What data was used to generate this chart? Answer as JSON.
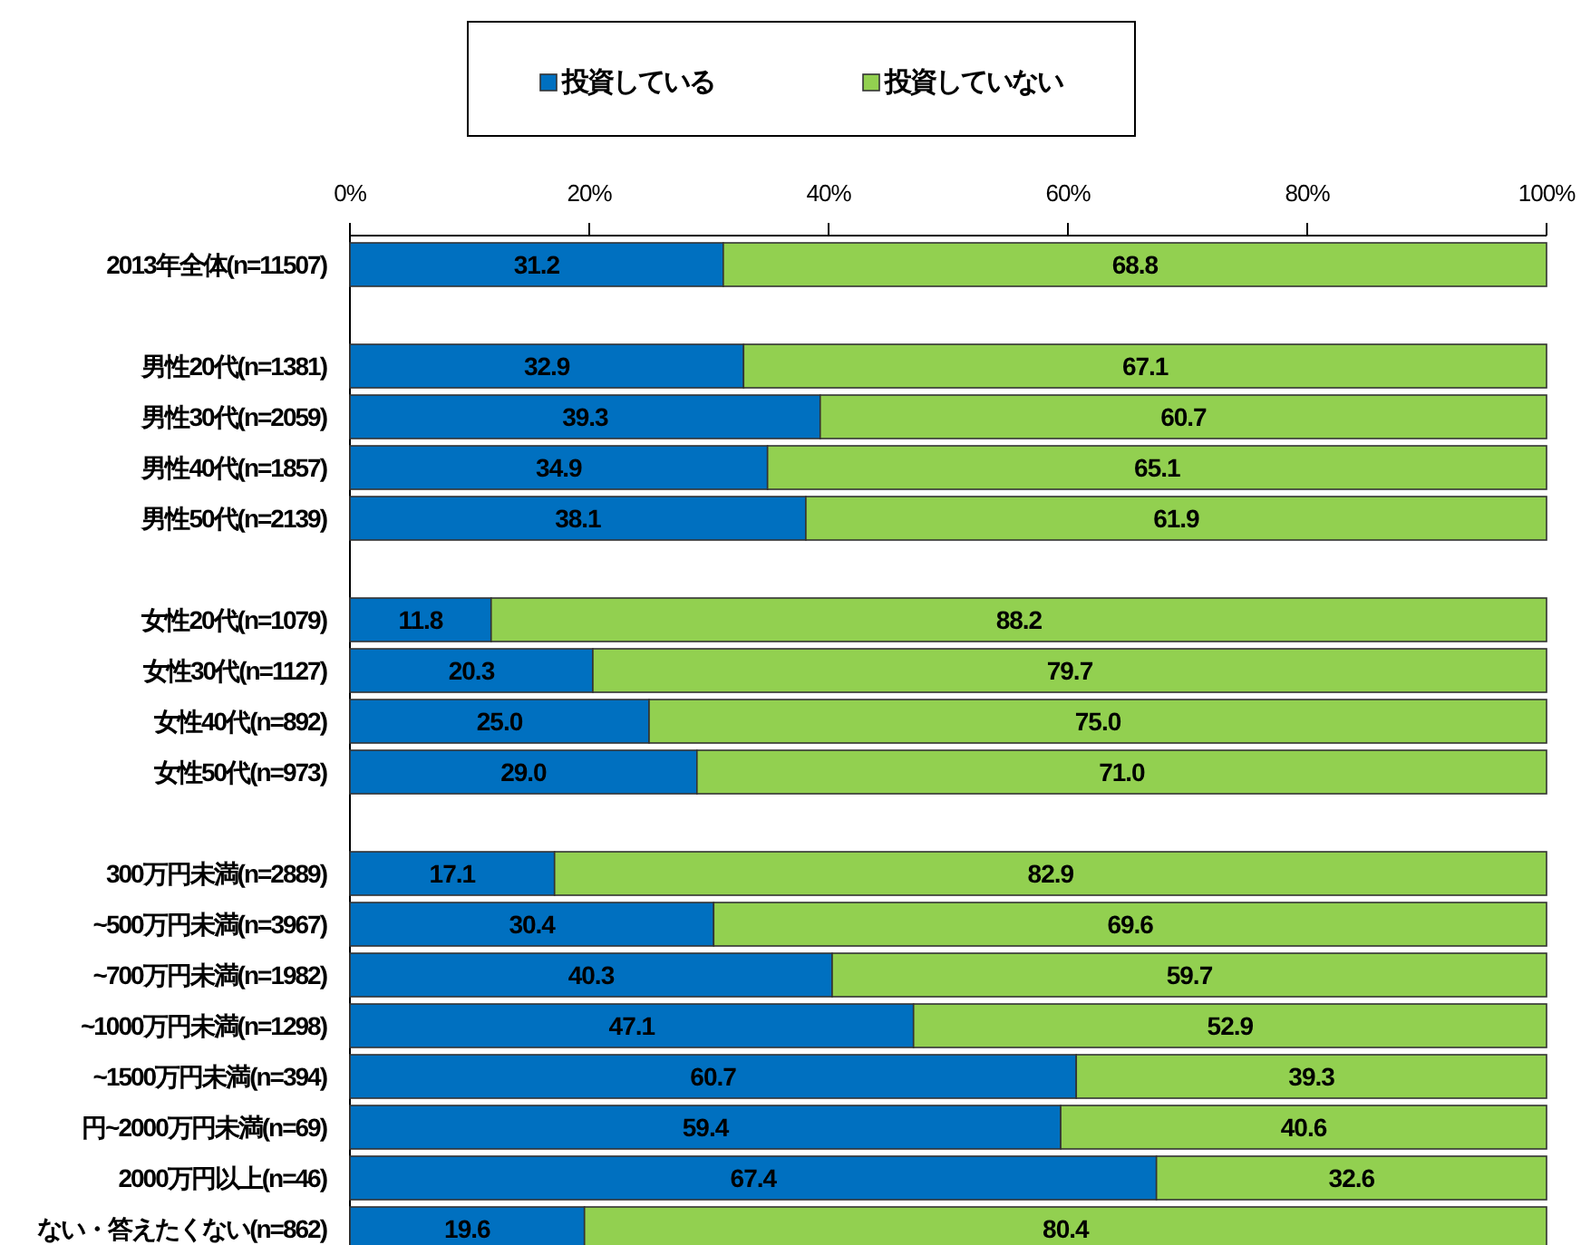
{
  "chart_data": {
    "type": "bar",
    "orientation": "horizontal",
    "stacked": true,
    "legend": "top",
    "categories": [
      "2013年全体(n=11507)",
      null,
      "男性20代(n=1381)",
      "男性30代(n=2059)",
      "男性40代(n=1857)",
      "男性50代(n=2139)",
      null,
      "女性20代(n=1079)",
      "女性30代(n=1127)",
      "女性40代(n=892)",
      "女性50代(n=973)",
      null,
      "300万円未満(n=2889)",
      "~500万円未満(n=3967)",
      "~700万円未満(n=1982)",
      "~1000万円未満(n=1298)",
      "~1500万円未満(n=394)",
      "円~2000万円未満(n=69)",
      "2000万円以上(n=46)",
      "ない・答えたくない(n=862)"
    ],
    "series": [
      {
        "name": "投資している",
        "color": "#0070c0",
        "values": [
          31.2,
          null,
          32.9,
          39.3,
          34.9,
          38.1,
          null,
          11.8,
          20.3,
          25.0,
          29.0,
          null,
          17.1,
          30.4,
          40.3,
          47.1,
          60.7,
          59.4,
          67.4,
          19.6
        ],
        "value_labels": [
          "31.2",
          null,
          "32.9",
          "39.3",
          "34.9",
          "38.1",
          null,
          "11.8",
          "20.3",
          "25.0",
          "29.0",
          null,
          "17.1",
          "30.4",
          "40.3",
          "47.1",
          "60.7",
          "59.4",
          "67.4",
          "19.6"
        ]
      },
      {
        "name": "投資していない",
        "color": "#92d050",
        "values": [
          68.8,
          null,
          67.1,
          60.7,
          65.1,
          61.9,
          null,
          88.2,
          79.7,
          75.0,
          71.0,
          null,
          82.9,
          69.6,
          59.7,
          52.9,
          39.3,
          40.6,
          32.6,
          80.4
        ],
        "value_labels": [
          "68.8",
          null,
          "67.1",
          "60.7",
          "65.1",
          "61.9",
          null,
          "88.2",
          "79.7",
          "75.0",
          "71.0",
          null,
          "82.9",
          "69.6",
          "59.7",
          "52.9",
          "39.3",
          "40.6",
          "32.6",
          "80.4"
        ]
      }
    ],
    "xlim": [
      0,
      100
    ],
    "xticks": [
      {
        "value": 0,
        "label": "0%"
      },
      {
        "value": 20,
        "label": "20%"
      },
      {
        "value": 40,
        "label": "40%"
      },
      {
        "value": 60,
        "label": "60%"
      },
      {
        "value": 80,
        "label": "80%"
      },
      {
        "value": 100,
        "label": "100%"
      }
    ]
  }
}
